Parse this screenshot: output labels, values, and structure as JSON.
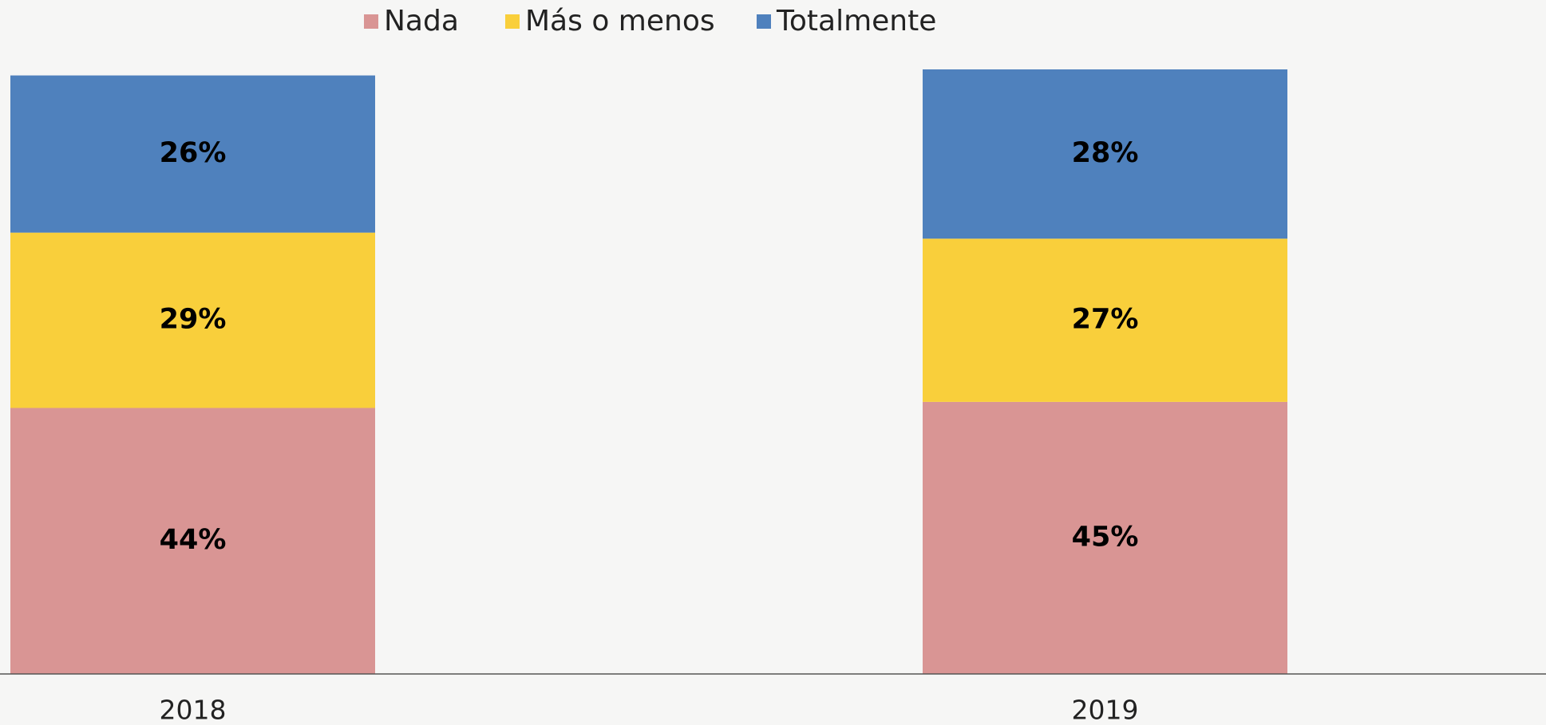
{
  "chart_data": {
    "type": "stacked_bar",
    "categories": [
      "2018",
      "2019"
    ],
    "series": [
      {
        "name": "Nada",
        "color": "#d99594",
        "values": [
          44,
          45
        ],
        "value_labels": [
          "44%",
          "45%"
        ]
      },
      {
        "name": "Más o menos",
        "color": "#f9cf3b",
        "values": [
          29,
          27
        ],
        "value_labels": [
          "29%",
          "27%"
        ]
      },
      {
        "name": "Totalmente",
        "color": "#4f81bd",
        "values": [
          26,
          28
        ],
        "value_labels": [
          "26%",
          "28%"
        ]
      }
    ],
    "ylim": [
      0,
      100
    ],
    "legend": "top"
  }
}
